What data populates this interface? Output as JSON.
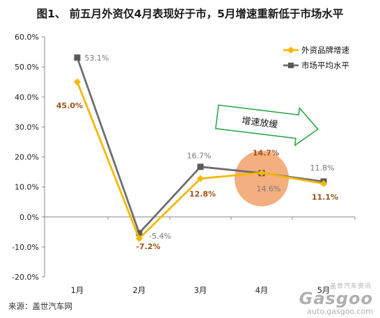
{
  "chart_data": {
    "type": "line",
    "title": "图1、 前五月外资仅4月表现好于市，5月增速重新低于市场水平",
    "categories": [
      "1月",
      "2月",
      "3月",
      "4月",
      "5月"
    ],
    "ylim": [
      -20,
      60
    ],
    "yticks": [
      "-20.0%",
      "-10.0%",
      "0.0%",
      "10.0%",
      "20.0%",
      "30.0%",
      "40.0%",
      "50.0%",
      "60.0%"
    ],
    "legend_position": "top-right",
    "grid": false,
    "series": [
      {
        "name": "外资品牌增速",
        "color": "#f5b800",
        "marker": "diamond",
        "values": [
          45.0,
          -7.2,
          12.8,
          14.7,
          11.1
        ],
        "labels": [
          "45.0%",
          "-7.2%",
          "12.8%",
          "14.7%",
          "11.1%"
        ],
        "label_color": "#a0521a"
      },
      {
        "name": "市场平均水平",
        "color": "#6e6e6e",
        "marker": "square",
        "values": [
          53.1,
          -5.4,
          16.7,
          14.6,
          11.8
        ],
        "labels": [
          "53.1%",
          "-5.4%",
          "16.7%",
          "14.6%",
          "11.8%"
        ],
        "label_color": "#777777"
      }
    ],
    "annotations": {
      "arrow_text": "增速放缓",
      "arrow_color": "#2aa84a",
      "highlight_color": "#f2a46e",
      "highlight_category": "4月"
    }
  },
  "footer": {
    "source": "来源：盖世汽车网"
  },
  "watermark": {
    "cn": "盖世汽车资讯",
    "brand": "Gasgoo",
    "url": "auto.gasgoo.com"
  }
}
